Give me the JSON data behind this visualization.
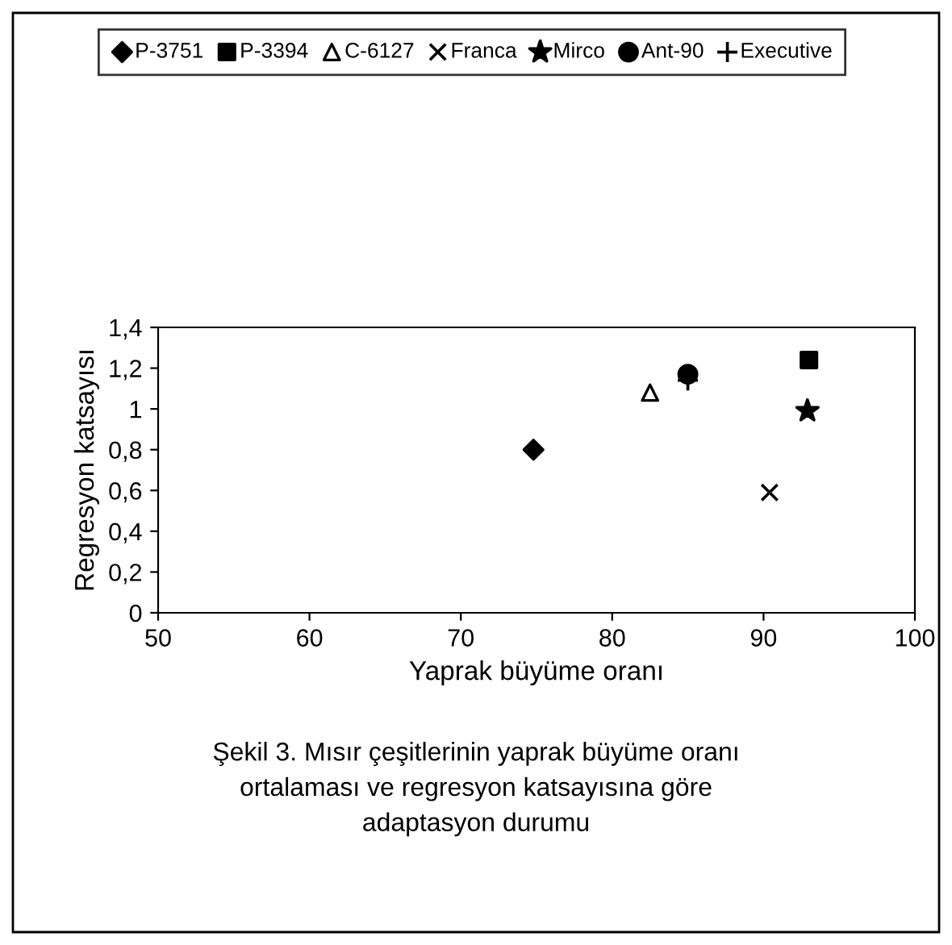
{
  "chart_data": {
    "type": "scatter",
    "xlabel": "Yaprak büyüme oranı",
    "ylabel": "Regresyon katsayısı",
    "annotations": [
      "Şekil 3. Mısır çeşitlerinin yaprak büyüme oranı\nortalaması ve regresyon katsayısına göre\nadaptasyon durumu"
    ],
    "series": [
      {
        "name": "P-3751",
        "color": "#000000",
        "marker": "diamond",
        "x": [
          74.8
        ],
        "values": [
          0.8
        ]
      },
      {
        "name": "P-3394",
        "color": "#000000",
        "marker": "square",
        "x": [
          93
        ],
        "values": [
          1.24
        ]
      },
      {
        "name": "C-6127",
        "color": "#000000",
        "marker": "triangle",
        "x": [
          82.5
        ],
        "values": [
          1.08
        ]
      },
      {
        "name": "Franca",
        "color": "#000000",
        "marker": "cross",
        "x": [
          90.4
        ],
        "values": [
          0.59
        ]
      },
      {
        "name": "Mirco",
        "color": "#000000",
        "marker": "star",
        "x": [
          92.9
        ],
        "values": [
          0.99
        ]
      },
      {
        "name": "Ant-90",
        "color": "#000000",
        "marker": "circle",
        "x": [
          85
        ],
        "values": [
          1.17
        ]
      },
      {
        "name": "Executive",
        "color": "#000000",
        "marker": "plus",
        "x": [
          85
        ],
        "values": [
          1.14
        ]
      }
    ],
    "xlim": [
      50,
      100
    ],
    "xticks": [
      50,
      60,
      70,
      80,
      90,
      100
    ],
    "ylim": [
      0,
      1.4
    ],
    "yticks": [
      {
        "value": 0,
        "label": "0"
      },
      {
        "value": 0.2,
        "label": "0,2"
      },
      {
        "value": 0.4,
        "label": "0,4"
      },
      {
        "value": 0.6,
        "label": "0,6"
      },
      {
        "value": 0.8,
        "label": "0,8"
      },
      {
        "value": 1,
        "label": "1"
      },
      {
        "value": 1.2,
        "label": "1,2"
      },
      {
        "value": 1.4,
        "label": "1,4"
      }
    ],
    "grid": false,
    "legend": "top"
  }
}
